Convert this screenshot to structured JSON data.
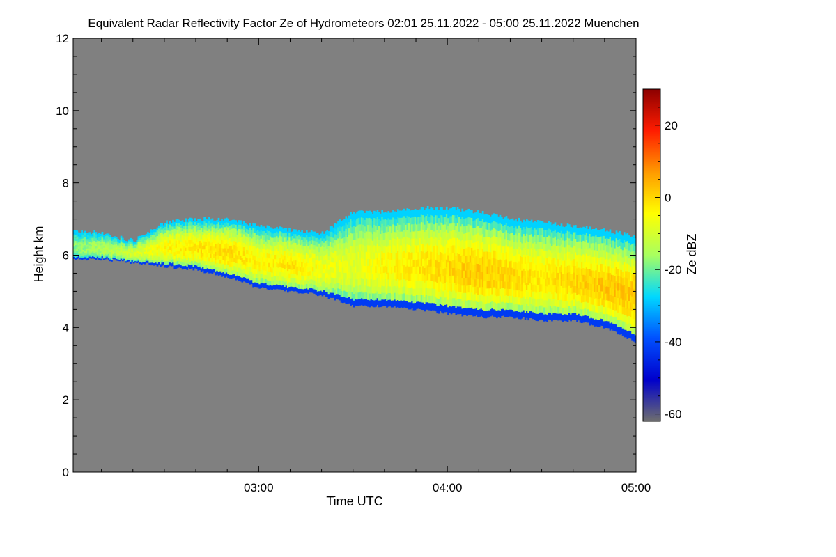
{
  "chart_data": {
    "type": "heatmap",
    "title": "Equivalent Radar Reflectivity Factor Ze of Hydrometeors   02:01 25.11.2022 - 05:00 25.11.2022 Muenchen",
    "xlabel": "Time UTC",
    "ylabel": "Height km",
    "colorbar_label": "Ze dBZ",
    "x_range": [
      "02:01",
      "05:00"
    ],
    "x_ticks": [
      {
        "label": "03:00",
        "minutes": 180
      },
      {
        "label": "04:00",
        "minutes": 240
      },
      {
        "label": "05:00",
        "minutes": 300
      }
    ],
    "y_range": [
      0,
      12
    ],
    "y_ticks": [
      0,
      2,
      4,
      6,
      8,
      10,
      12
    ],
    "colorbar_range": [
      -62,
      30
    ],
    "colorbar_ticks": [
      -60,
      -40,
      -20,
      0,
      20
    ],
    "background_color": "#808080",
    "colormap": [
      "#6e6e6e",
      "#0000cc",
      "#0050ff",
      "#00d8ff",
      "#a8ff60",
      "#ffff00",
      "#ff9a00",
      "#ff1c00",
      "#8c0000"
    ],
    "cloud_layer": {
      "description_points_time_minutes": [
        121,
        130,
        140,
        150,
        160,
        170,
        180,
        190,
        200,
        210,
        220,
        230,
        240,
        250,
        260,
        270,
        280,
        290,
        300
      ],
      "top_km": [
        6.7,
        6.6,
        6.4,
        6.9,
        7.0,
        7.0,
        6.8,
        6.7,
        6.6,
        7.2,
        7.2,
        7.3,
        7.3,
        7.2,
        7.0,
        6.9,
        6.8,
        6.7,
        6.5
      ],
      "base_km": [
        5.9,
        5.9,
        5.8,
        5.7,
        5.6,
        5.4,
        5.1,
        5.0,
        4.9,
        4.6,
        4.6,
        4.5,
        4.4,
        4.3,
        4.3,
        4.2,
        4.2,
        4.0,
        3.6
      ],
      "core_dbz": [
        -18,
        -14,
        -10,
        -4,
        -2,
        0,
        -4,
        -2,
        -6,
        -8,
        -4,
        -2,
        0,
        2,
        0,
        -2,
        0,
        2,
        2
      ]
    }
  }
}
